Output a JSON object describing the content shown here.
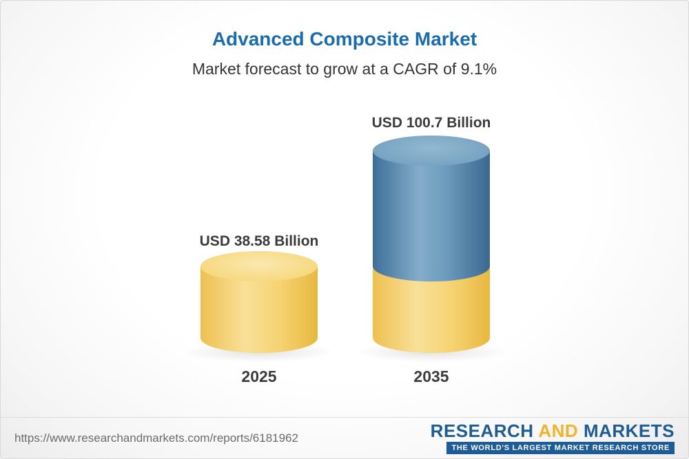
{
  "header": {
    "title": "Advanced Composite Market",
    "subtitle": "Market forecast to grow at a CAGR of 9.1%"
  },
  "chart_data": {
    "type": "bar",
    "style": "3d-cylinder, stacked growth segment on second bar",
    "categories": [
      "2025",
      "2035"
    ],
    "values": [
      38.58,
      100.7
    ],
    "value_labels": [
      "USD 38.58 Billion",
      "USD 100.7 Billion"
    ],
    "unit": "USD Billion",
    "cagr_percent": 9.1,
    "title": "Advanced Composite Market",
    "subtitle": "Market forecast to grow at a CAGR of 9.1%",
    "legend": "none",
    "grid": "off",
    "colors": {
      "base_segment": "#f5cf63",
      "growth_segment": "#4678a2",
      "title_accent": "#1a6cb1",
      "label_text": "#3b3b3b"
    }
  },
  "footer": {
    "url": "https://www.researchandmarkets.com/reports/6181962",
    "logo": {
      "part1": "RESEARCH",
      "part2": "AND",
      "part3": "MARKETS",
      "tagline": "THE WORLD'S LARGEST MARKET RESEARCH STORE",
      "blue": "#1d5c97",
      "yellow": "#f2b229"
    }
  }
}
